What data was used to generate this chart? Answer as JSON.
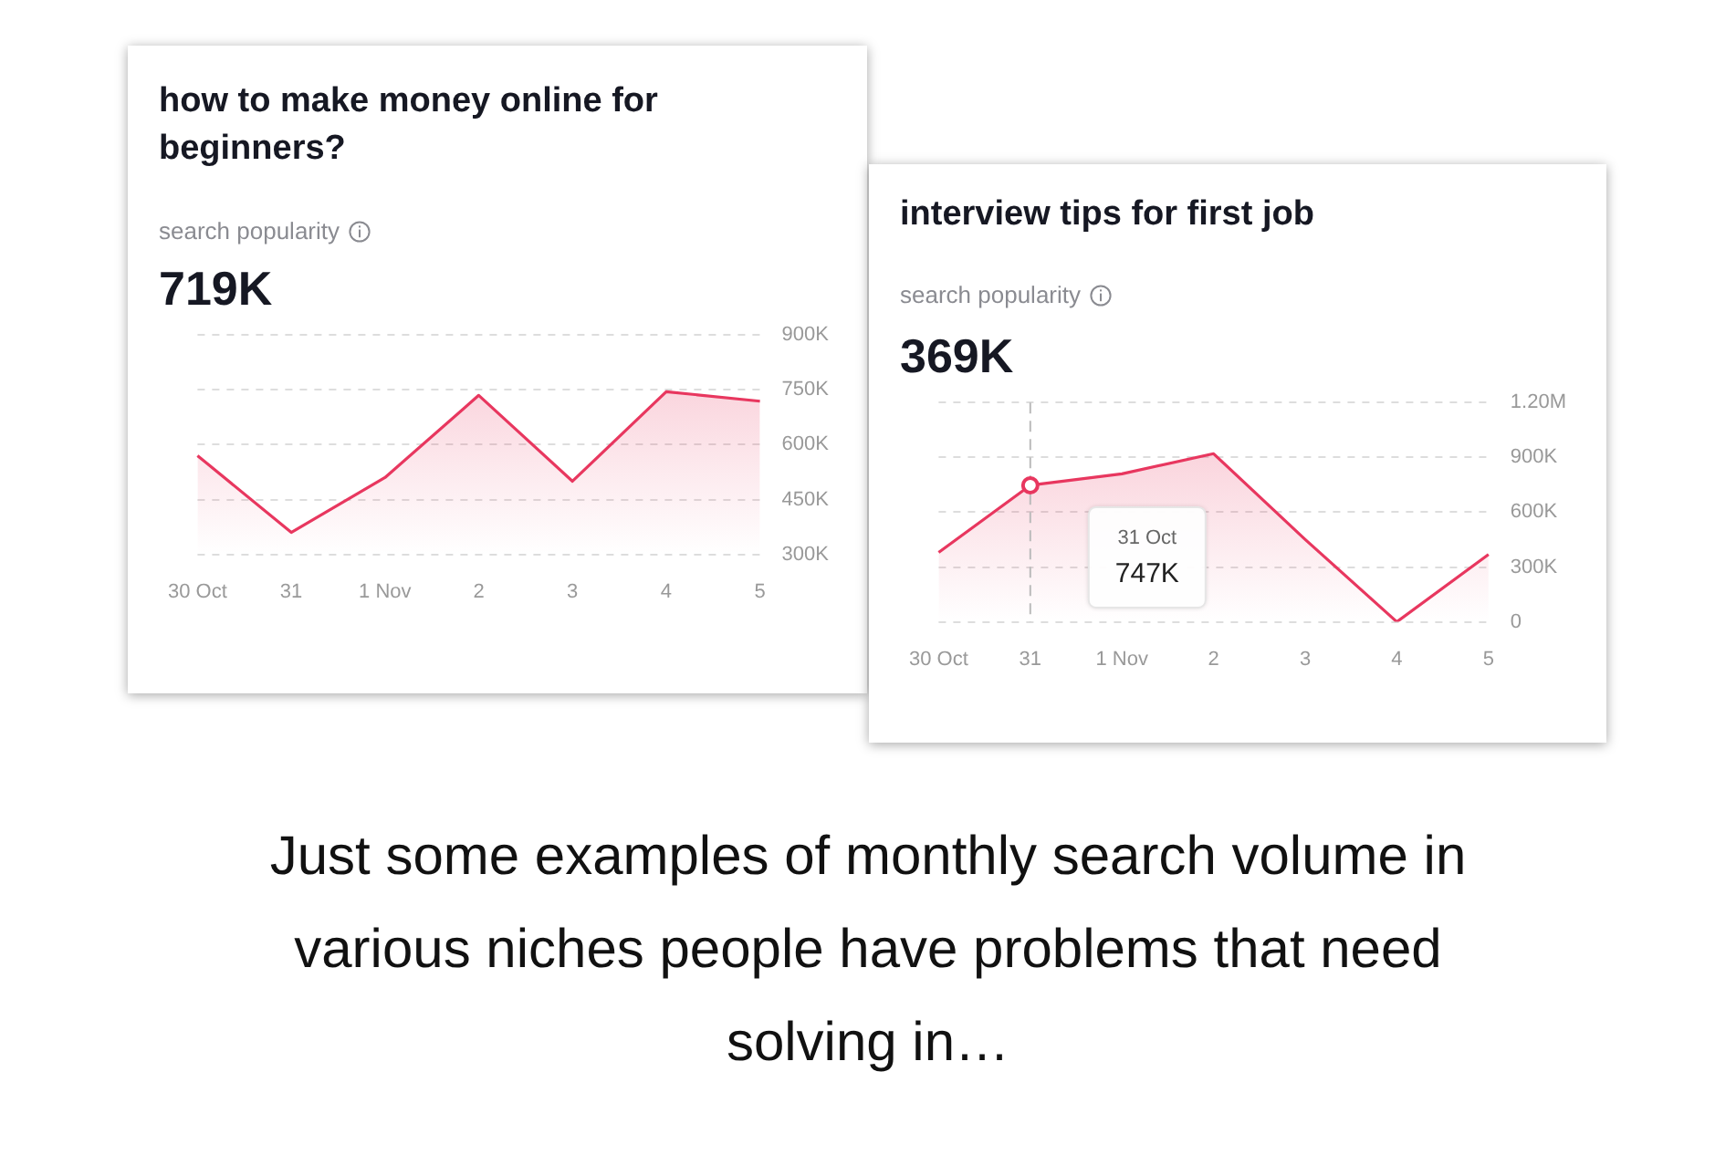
{
  "chart_data": [
    {
      "type": "area",
      "title": "how to make money online for beginners?",
      "subtitle": "search popularity",
      "annotations": [
        "719K"
      ],
      "categories": [
        "30 Oct",
        "31",
        "1 Nov",
        "2",
        "3",
        "4",
        "5"
      ],
      "series": [
        {
          "color": "#e8375f",
          "values": [
            570000,
            360000,
            510000,
            735000,
            500000,
            745000,
            719000
          ]
        }
      ],
      "ylim": [
        300000,
        900000
      ],
      "yticks": [
        {
          "value": 300000,
          "label": "300K"
        },
        {
          "value": 450000,
          "label": "450K"
        },
        {
          "value": 600000,
          "label": "600K"
        },
        {
          "value": 750000,
          "label": "750K"
        },
        {
          "value": 900000,
          "label": "900K"
        }
      ],
      "grid": "y",
      "legend": false,
      "marker": "none",
      "line_style": "solid"
    },
    {
      "type": "area",
      "title": "interview tips for first job",
      "subtitle": "search popularity",
      "annotations": [
        "369K",
        "31 Oct\n747K",
        "Just some examples of monthly search volume in various niches people have problems that need solving in…"
      ],
      "categories": [
        "30 Oct",
        "31",
        "1 Nov",
        "2",
        "3",
        "4",
        "5"
      ],
      "series": [
        {
          "color": "#e8375f",
          "values": [
            380000,
            747000,
            810000,
            920000,
            450000,
            0,
            369000
          ]
        }
      ],
      "ylim": [
        0,
        1200000
      ],
      "yticks": [
        {
          "value": 0,
          "label": "0"
        },
        {
          "value": 300000,
          "label": "300K"
        },
        {
          "value": 600000,
          "label": "600K"
        },
        {
          "value": 900000,
          "label": "900K"
        },
        {
          "value": 1200000,
          "label": "1.20M"
        }
      ],
      "ref_lines": [
        {
          "axis": "x",
          "value": "31",
          "color": "#bbbbbb",
          "line_style": "dashed"
        }
      ],
      "grid": "y",
      "legend": false,
      "marker": "none",
      "line_style": "solid"
    }
  ]
}
